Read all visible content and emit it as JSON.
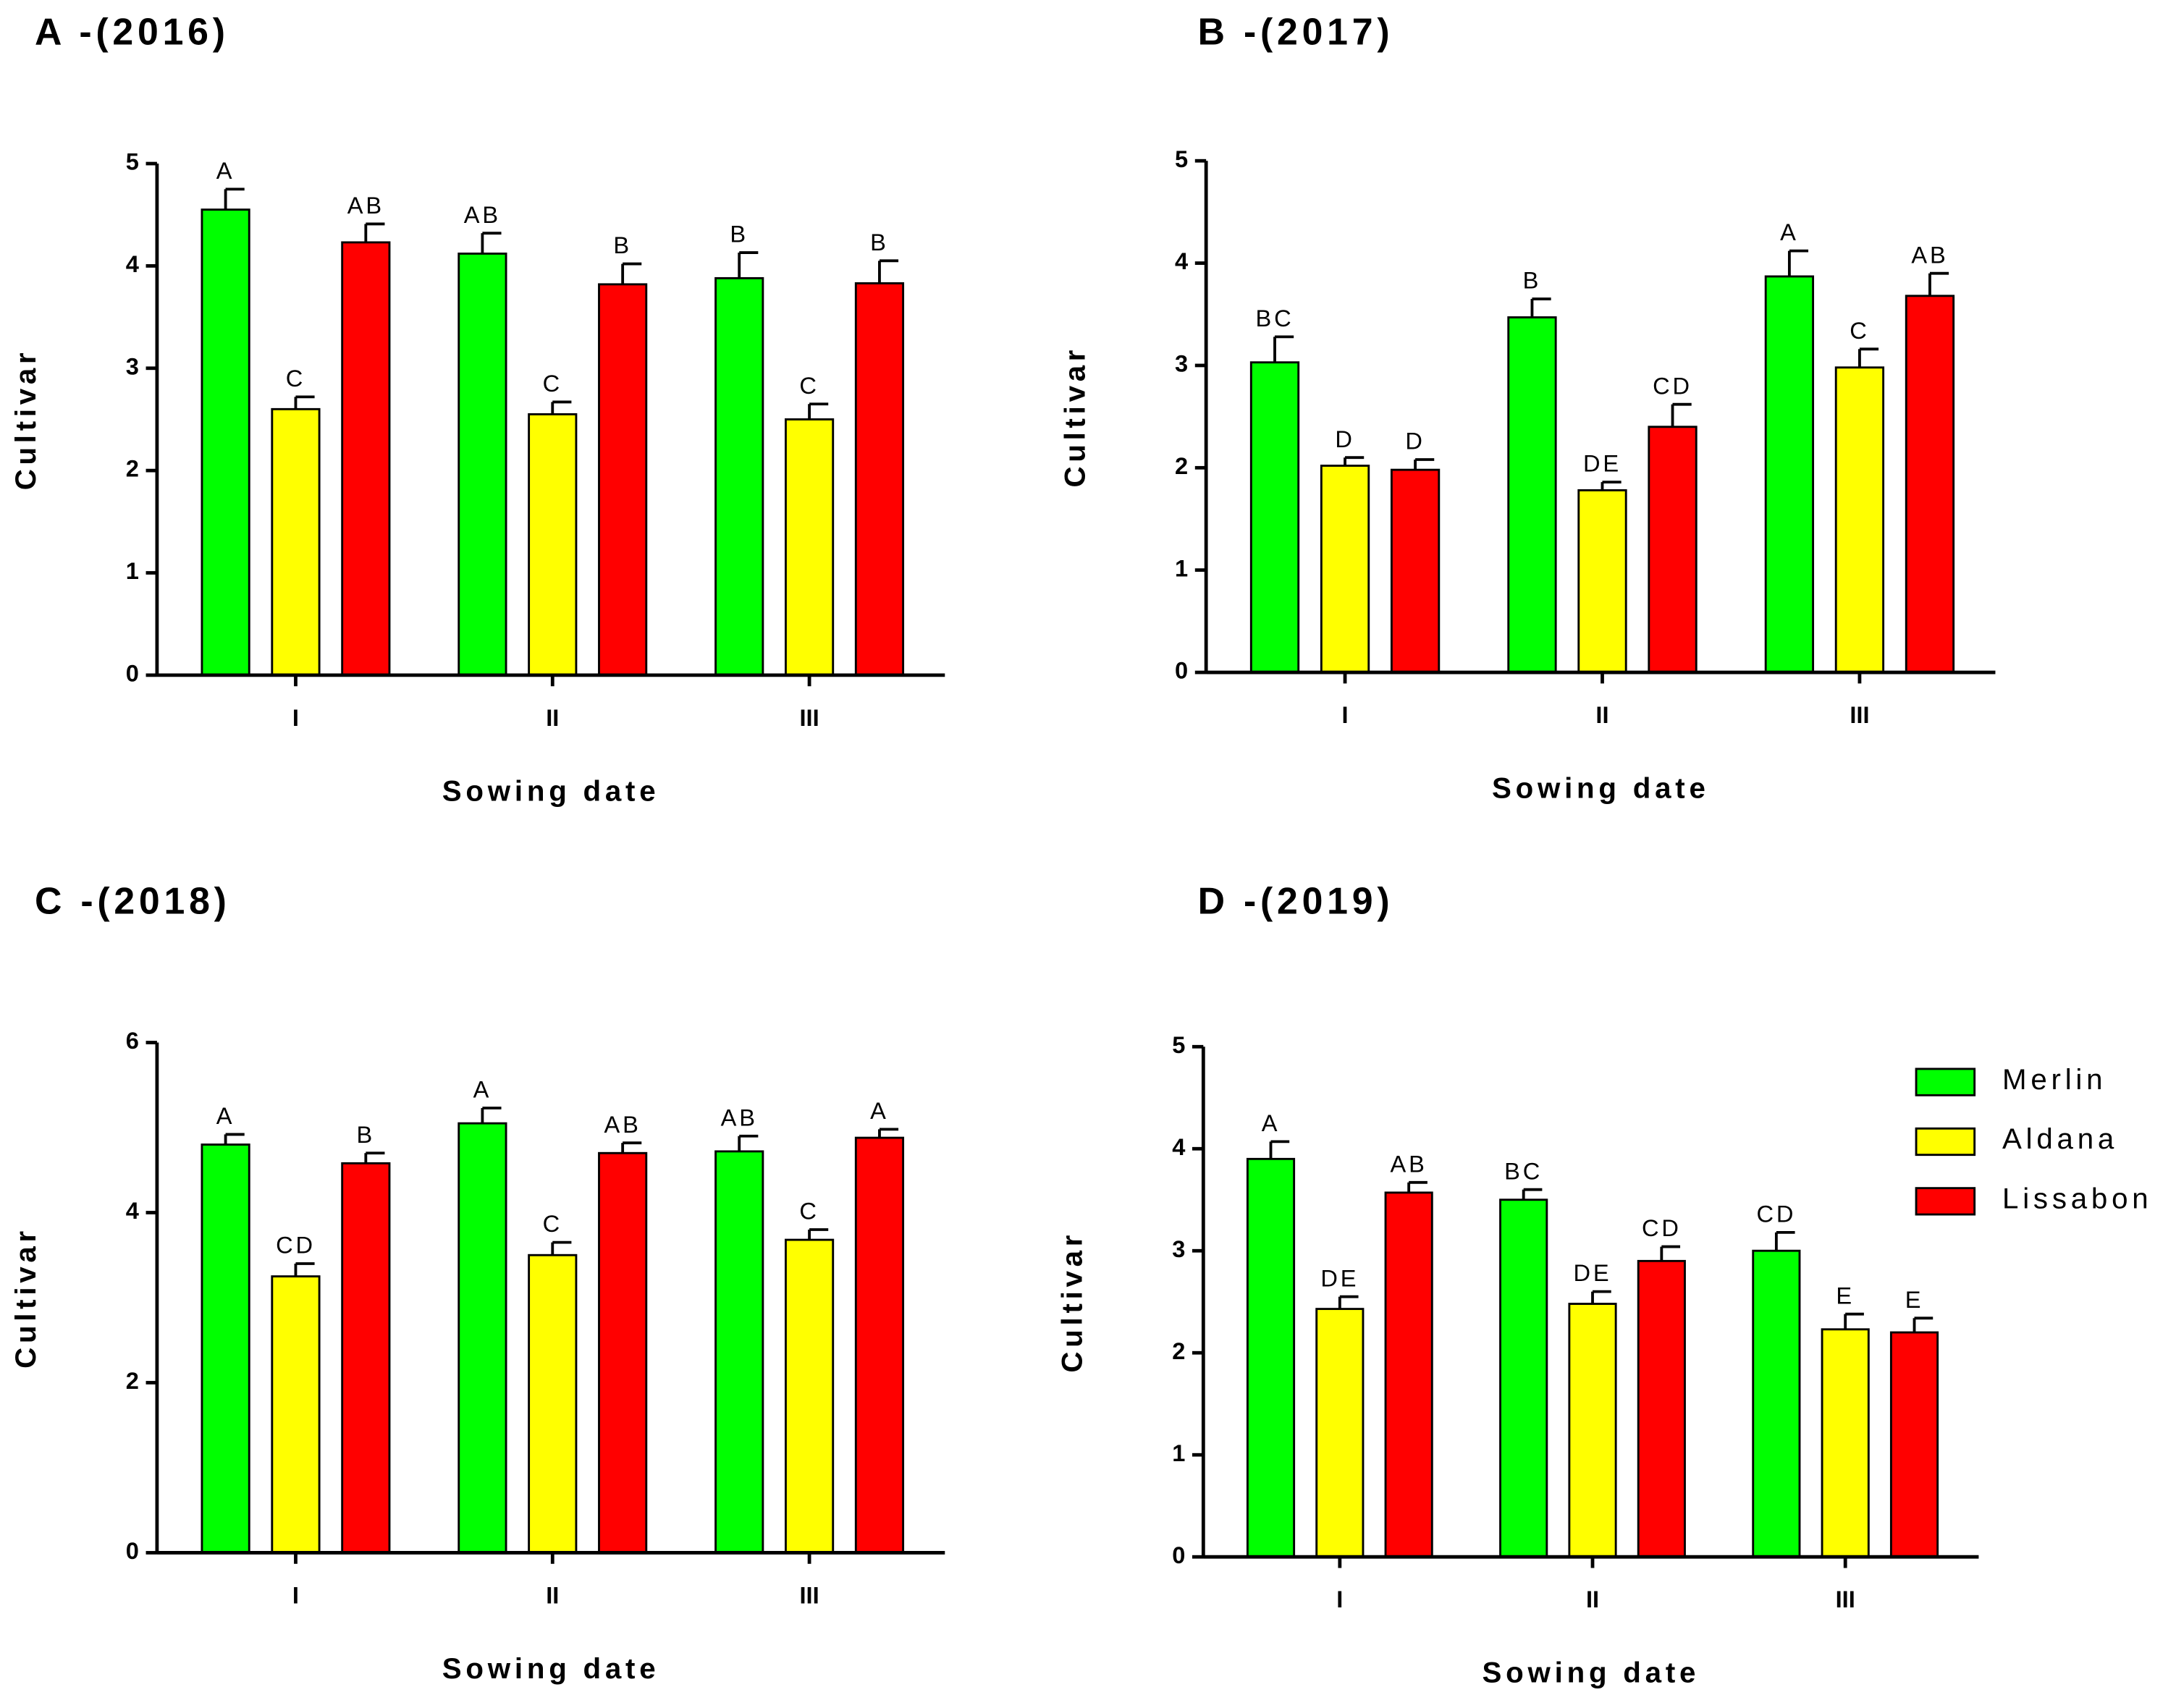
{
  "chart_data": [
    {
      "type": "bar",
      "title": "A -(2016)",
      "xlabel": "Sowing date",
      "ylabel": "Cultivar",
      "categories": [
        "I",
        "II",
        "III"
      ],
      "ylim": [
        0,
        5
      ],
      "yticks": [
        0,
        1,
        2,
        3,
        4,
        5
      ],
      "series": [
        {
          "color": "#00ff00",
          "values": [
            4.55,
            4.12,
            3.88
          ],
          "errors": [
            0.2,
            0.2,
            0.25
          ],
          "letters": [
            "A",
            "AB",
            "B"
          ]
        },
        {
          "color": "#ffff00",
          "values": [
            2.6,
            2.55,
            2.5
          ],
          "errors": [
            0.12,
            0.12,
            0.15
          ],
          "letters": [
            "C",
            "C",
            "C"
          ]
        },
        {
          "color": "#ff0000",
          "values": [
            4.23,
            3.82,
            3.83
          ],
          "errors": [
            0.18,
            0.2,
            0.22
          ],
          "letters": [
            "AB",
            "B",
            "B"
          ]
        }
      ]
    },
    {
      "type": "bar",
      "title": "B -(2017)",
      "xlabel": "Sowing date",
      "ylabel": "Cultivar",
      "categories": [
        "I",
        "II",
        "III"
      ],
      "ylim": [
        0,
        5
      ],
      "yticks": [
        0,
        1,
        2,
        3,
        4,
        5
      ],
      "series": [
        {
          "color": "#00ff00",
          "values": [
            3.03,
            3.47,
            3.87
          ],
          "errors": [
            0.25,
            0.18,
            0.25
          ],
          "letters": [
            "BC",
            "B",
            "A"
          ]
        },
        {
          "color": "#ffff00",
          "values": [
            2.02,
            1.78,
            2.98
          ],
          "errors": [
            0.08,
            0.08,
            0.18
          ],
          "letters": [
            "D",
            "DE",
            "C"
          ]
        },
        {
          "color": "#ff0000",
          "values": [
            1.98,
            2.4,
            3.68
          ],
          "errors": [
            0.1,
            0.22,
            0.22
          ],
          "letters": [
            "D",
            "CD",
            "AB"
          ]
        }
      ]
    },
    {
      "type": "bar",
      "title": "C -(2018)",
      "xlabel": "Sowing date",
      "ylabel": "Cultivar",
      "categories": [
        "I",
        "II",
        "III"
      ],
      "ylim": [
        0,
        6
      ],
      "yticks": [
        0,
        2,
        4,
        6
      ],
      "series": [
        {
          "color": "#00ff00",
          "values": [
            4.8,
            5.05,
            4.72
          ],
          "errors": [
            0.12,
            0.18,
            0.18
          ],
          "letters": [
            "A",
            "A",
            "AB"
          ]
        },
        {
          "color": "#ffff00",
          "values": [
            3.25,
            3.5,
            3.68
          ],
          "errors": [
            0.15,
            0.15,
            0.12
          ],
          "letters": [
            "CD",
            "C",
            "C"
          ]
        },
        {
          "color": "#ff0000",
          "values": [
            4.58,
            4.7,
            4.88
          ],
          "errors": [
            0.12,
            0.12,
            0.1
          ],
          "letters": [
            "B",
            "AB",
            "A"
          ]
        }
      ]
    },
    {
      "type": "bar",
      "title": "D -(2019)",
      "xlabel": "Sowing date",
      "ylabel": "Cultivar",
      "categories": [
        "I",
        "II",
        "III"
      ],
      "ylim": [
        0,
        5
      ],
      "yticks": [
        0,
        1,
        2,
        3,
        4,
        5
      ],
      "legend": "right",
      "series": [
        {
          "name": "Merlin",
          "color": "#00ff00",
          "values": [
            3.9,
            3.5,
            3.0
          ],
          "errors": [
            0.17,
            0.1,
            0.18
          ],
          "letters": [
            "A",
            "BC",
            "CD"
          ]
        },
        {
          "name": "Aldana",
          "color": "#ffff00",
          "values": [
            2.43,
            2.48,
            2.23
          ],
          "errors": [
            0.12,
            0.12,
            0.15
          ],
          "letters": [
            "DE",
            "DE",
            "E"
          ]
        },
        {
          "name": "Lissabon",
          "color": "#ff0000",
          "values": [
            3.57,
            2.9,
            2.2
          ],
          "errors": [
            0.1,
            0.14,
            0.14
          ],
          "letters": [
            "AB",
            "CD",
            "E"
          ]
        }
      ]
    }
  ]
}
